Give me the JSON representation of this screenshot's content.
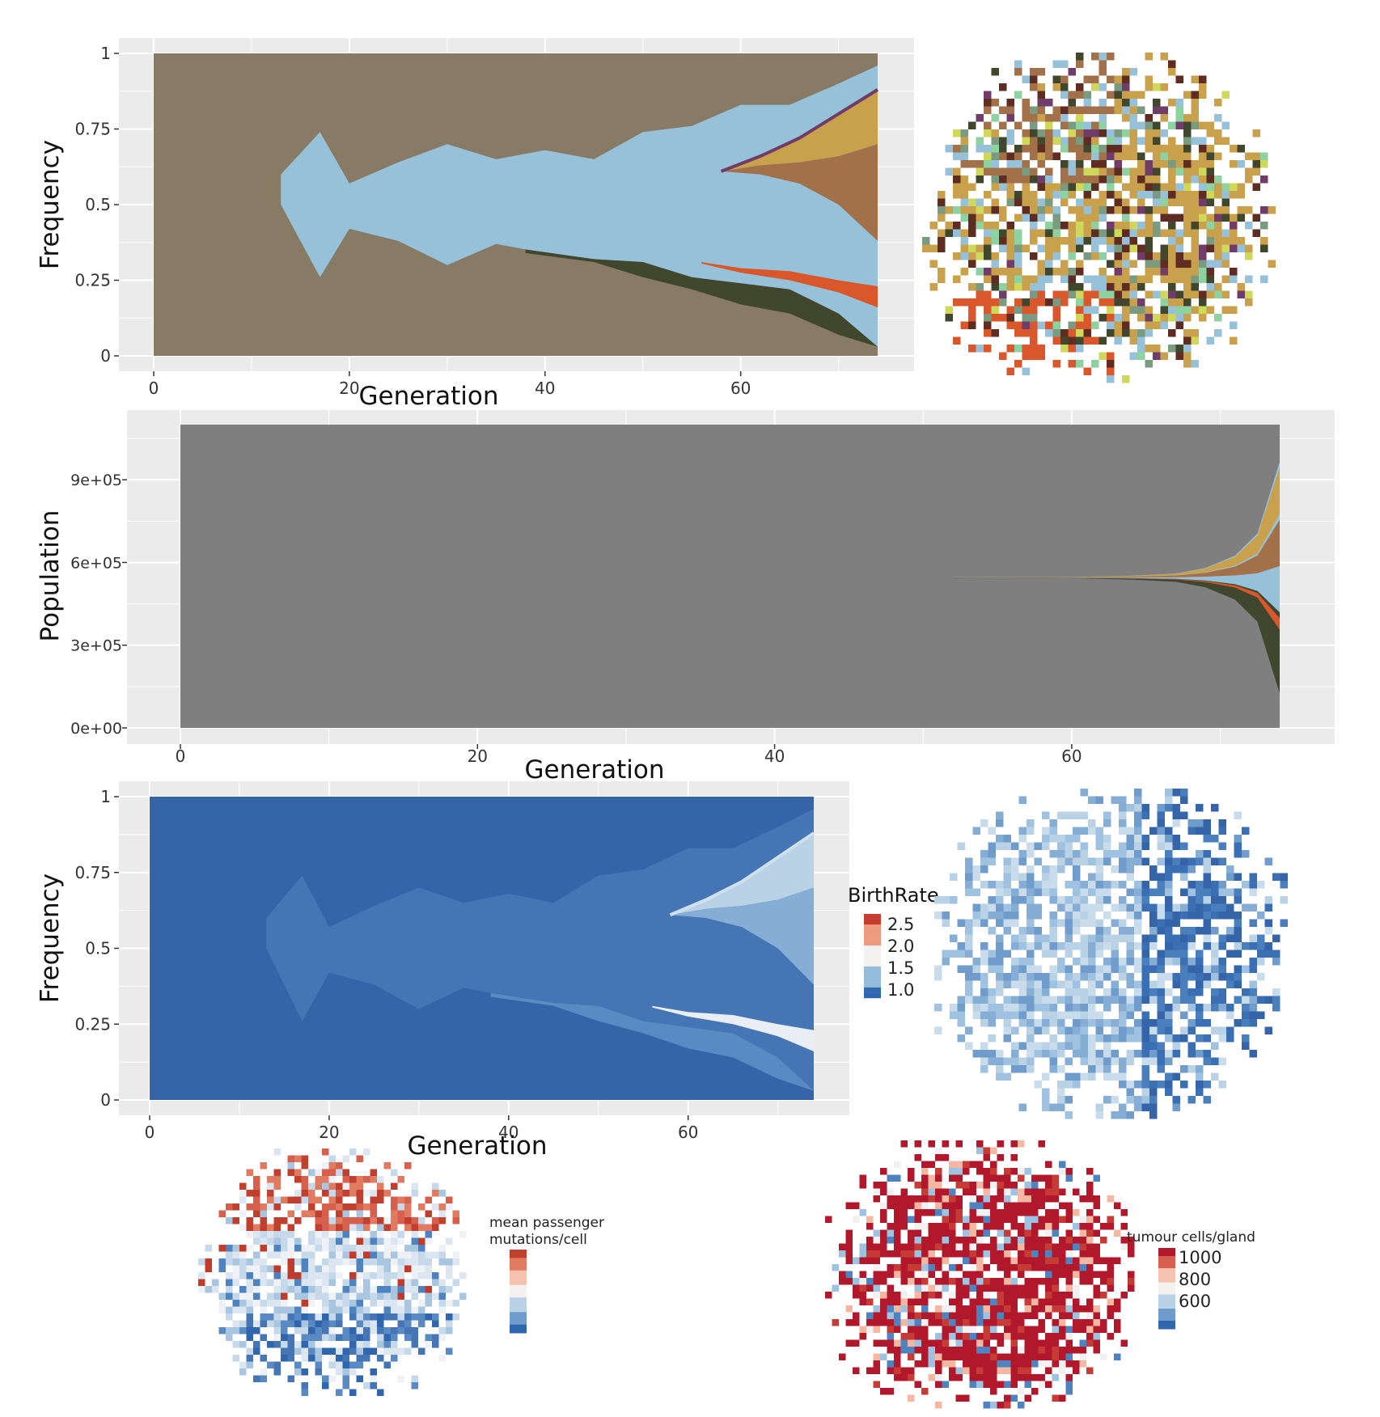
{
  "palette": {
    "panel_bg": "#ebebeb",
    "grid": "#ffffff",
    "clone_colors": [
      "#887b66",
      "#96c1d9",
      "#40472c",
      "#c9a14d",
      "#a2714a",
      "#d9572a",
      "#5e2c20",
      "#7a9b7f",
      "#8fd2a2",
      "#6f3d68",
      "#cfd85a",
      "#d070b8"
    ],
    "population_bg": "#7f7f7f",
    "birthrate_colors": [
      "#3565a8",
      "#4575b4",
      "#5a8ac2",
      "#86add3",
      "#b9d2e6",
      "#e8eef3"
    ],
    "diverging_low": "#2f66ad",
    "diverging_mid": "#f5f5f5",
    "diverging_high": "#b2182b"
  },
  "chart_data": [
    {
      "id": "clone-frequency",
      "type": "area",
      "xlabel": "Generation",
      "ylabel": "Frequency",
      "xlim": [
        0,
        74
      ],
      "ylim": [
        0,
        1
      ],
      "xticks": [
        "0",
        "20",
        "40",
        "60"
      ],
      "yticks": [
        "0",
        "0.25",
        "0.5",
        "0.75",
        "1"
      ],
      "grid": true,
      "description_series": [
        {
          "x": [
            13,
            17,
            20,
            25,
            30,
            35,
            40,
            45,
            50,
            55,
            60,
            65,
            70,
            74
          ],
          "lower": [
            0.5,
            0.26,
            0.42,
            0.38,
            0.3,
            0.37,
            0.34,
            0.32,
            0.31,
            0.26,
            0.24,
            0.22,
            0.14,
            0.03
          ],
          "upper": [
            0.6,
            0.74,
            0.57,
            0.64,
            0.7,
            0.65,
            0.68,
            0.65,
            0.74,
            0.76,
            0.83,
            0.83,
            0.9,
            0.96
          ]
        }
      ]
    },
    {
      "id": "clone-population",
      "type": "area",
      "xlabel": "Generation",
      "ylabel": "Population",
      "xlim": [
        0,
        74
      ],
      "ylim": [
        0,
        1100000
      ],
      "xticks": [
        "0",
        "20",
        "40",
        "60"
      ],
      "yticks": [
        "0e+00",
        "3e+05",
        "6e+05",
        "9e+05"
      ],
      "grid": true
    },
    {
      "id": "birthrate-frequency",
      "type": "area",
      "xlabel": "Generation",
      "ylabel": "Frequency",
      "xlim": [
        0,
        74
      ],
      "ylim": [
        0,
        1
      ],
      "xticks": [
        "0",
        "20",
        "40",
        "60"
      ],
      "yticks": [
        "0",
        "0.25",
        "0.5",
        "0.75",
        "1"
      ],
      "grid": true,
      "legend": {
        "title": "BirthRate",
        "labels": [
          "2.5",
          "2.0",
          "1.5",
          "1.0"
        ],
        "placement": "right"
      }
    },
    {
      "id": "clone-spatial-map",
      "type": "heatmap",
      "grid_cells": [
        48,
        46
      ]
    },
    {
      "id": "birthrate-spatial-map",
      "type": "heatmap",
      "grid_cells": [
        48,
        46
      ]
    },
    {
      "id": "passenger-map",
      "type": "heatmap",
      "legend": {
        "title_line1": "mean passenger",
        "title_line2": "mutations/cell",
        "placement": "right"
      }
    },
    {
      "id": "tumour-cells-map",
      "type": "heatmap",
      "legend": {
        "title": "tumour cells/gland",
        "labels": [
          "1000",
          "800",
          "600"
        ],
        "placement": "right"
      }
    }
  ]
}
